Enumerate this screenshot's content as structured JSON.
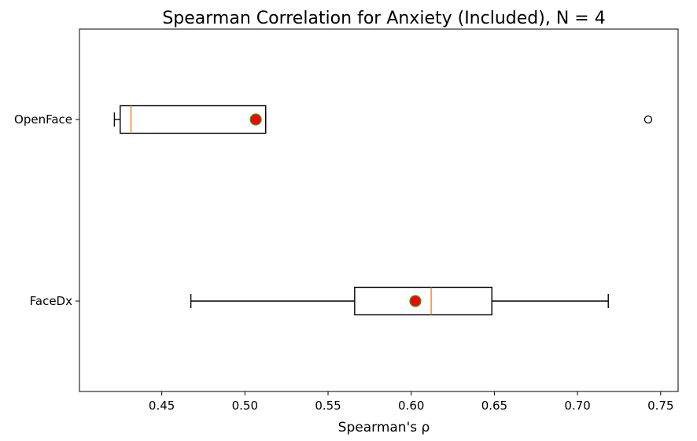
{
  "chart_data": {
    "type": "boxplot",
    "orientation": "horizontal",
    "title": "Spearman Correlation for Anxiety (Included), N = 4",
    "xlabel": "Spearman's ρ",
    "ylabel": "",
    "xlim": [
      0.4005,
      0.7605
    ],
    "xticks": [
      0.45,
      0.5,
      0.55,
      0.6,
      0.65,
      0.7,
      0.75
    ],
    "xtick_labels": [
      "0.45",
      "0.50",
      "0.55",
      "0.60",
      "0.65",
      "0.70",
      "0.75"
    ],
    "grid": false,
    "mean_marker_color": "#ff0000",
    "mean_marker_edge": "#2ca02c",
    "median_color": "#ff7f0e",
    "series": [
      {
        "name": "OpenFace",
        "whisker_low": 0.4215,
        "q1": 0.425,
        "median": 0.4315,
        "q3": 0.5125,
        "whisker_high": 0.5125,
        "mean": 0.5065,
        "fliers": [
          0.7425
        ]
      },
      {
        "name": "FaceDx",
        "whisker_low": 0.4675,
        "q1": 0.566,
        "median": 0.612,
        "q3": 0.6485,
        "whisker_high": 0.7185,
        "mean": 0.6025,
        "fliers": []
      }
    ]
  }
}
